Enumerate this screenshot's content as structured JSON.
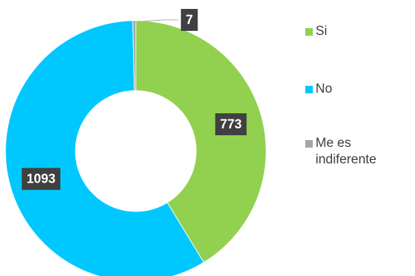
{
  "chart_data": {
    "type": "donut",
    "categories": [
      "Si",
      "No",
      "Me es indiferente"
    ],
    "values": [
      773,
      1093,
      7
    ],
    "colors": [
      "#92d050",
      "#00c8ff",
      "#a6a6a6"
    ],
    "legend": "right"
  }
}
